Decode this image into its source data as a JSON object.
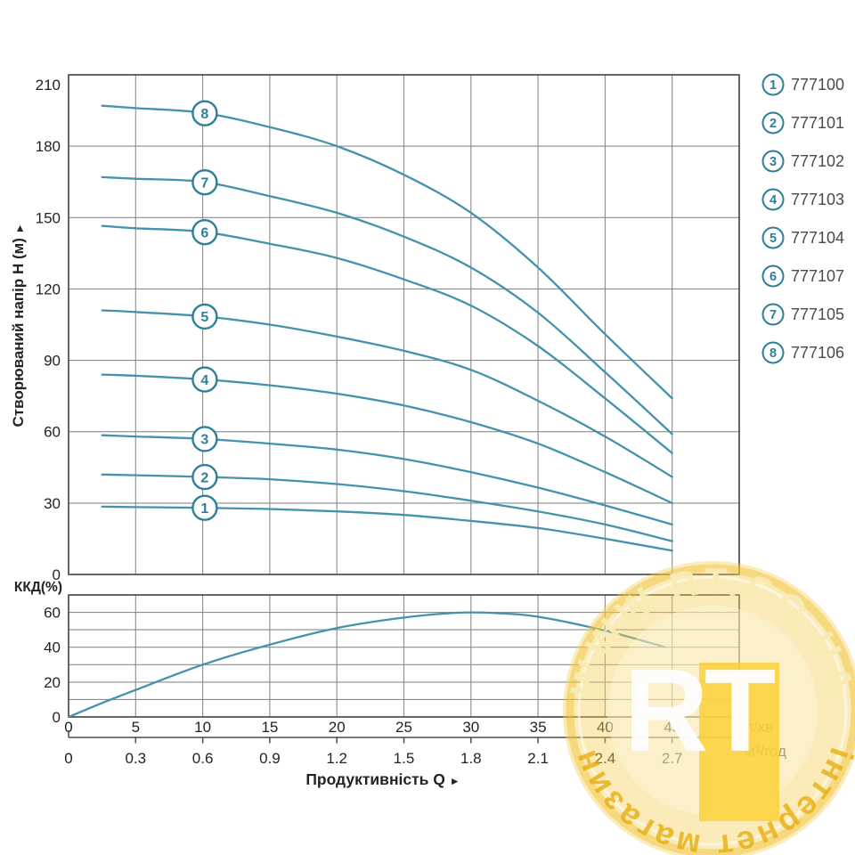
{
  "figure": {
    "description": "Pump performance curves: head H vs flow Q for 8 models, with efficiency subchart",
    "background": "#ffffff"
  },
  "colors": {
    "curve": "#4492ab",
    "curve_circle": "#2e7f99",
    "grid": "#8b8b8b",
    "frame": "#4c4c4c",
    "tick_text": "#262220",
    "legend_text": "#4a4a46",
    "watermark_gold": "#f6cf56",
    "watermark_ring": "#efbd2a",
    "watermark_square": "#fccf33",
    "watermark_arc_top": "#f8ecb4",
    "watermark_arc_bottom": "#e6ad0b"
  },
  "head_axis": {
    "title": "Створюваний напір H (м)",
    "arrow": "►"
  },
  "eff_axis": {
    "title": "ККД(%)"
  },
  "x_axis": {
    "title": "Продуктивність  Q",
    "arrow": "►",
    "unit_primary": "л/хв",
    "unit_secondary": "м³/год",
    "primary_ticks": [
      "0",
      "5",
      "10",
      "15",
      "20",
      "25",
      "30",
      "35",
      "40",
      "45"
    ],
    "secondary_ticks": [
      "0",
      "0.3",
      "0.6",
      "0.9",
      "1.2",
      "1.5",
      "1.8",
      "2.1",
      "2.4",
      "2.7"
    ]
  },
  "legend": {
    "items": [
      {
        "number": "1",
        "code": "777100"
      },
      {
        "number": "2",
        "code": "777101"
      },
      {
        "number": "3",
        "code": "777102"
      },
      {
        "number": "4",
        "code": "777103"
      },
      {
        "number": "5",
        "code": "777104"
      },
      {
        "number": "6",
        "code": "777107"
      },
      {
        "number": "7",
        "code": "777105"
      },
      {
        "number": "8",
        "code": "777106"
      }
    ]
  },
  "watermark": {
    "arc_top": "WWW.RT.CO.UA",
    "arc_bottom": "інтернет магазин",
    "logo": "RT"
  },
  "chart_data": [
    {
      "type": "line",
      "title": "",
      "xlabel": "Продуктивність Q",
      "ylabel": "Створюваний напір H (м)",
      "x_units": [
        "л/хв",
        "м³/год"
      ],
      "xlim": [
        0,
        50
      ],
      "ylim": [
        0,
        210
      ],
      "xticks_lmin": [
        0,
        5,
        10,
        15,
        20,
        25,
        30,
        35,
        40,
        45
      ],
      "xticks_m3h": [
        0,
        0.3,
        0.6,
        0.9,
        1.2,
        1.5,
        1.8,
        2.1,
        2.4,
        2.7
      ],
      "yticks": [
        0,
        30,
        60,
        90,
        120,
        150,
        180,
        210
      ],
      "grid": true,
      "legend_position": "right",
      "curve_label_q": 10.15,
      "series": [
        {
          "name": "1",
          "code": "777100",
          "points": [
            [
              2.5,
              28.5
            ],
            [
              5,
              28.3
            ],
            [
              10,
              28
            ],
            [
              15,
              27.5
            ],
            [
              20,
              26.5
            ],
            [
              25,
              25
            ],
            [
              30,
              22.5
            ],
            [
              35,
              19.5
            ],
            [
              40,
              15
            ],
            [
              45,
              10
            ]
          ]
        },
        {
          "name": "2",
          "code": "777101",
          "points": [
            [
              2.5,
              42
            ],
            [
              5,
              41.7
            ],
            [
              10,
              41
            ],
            [
              15,
              40
            ],
            [
              20,
              38
            ],
            [
              25,
              35
            ],
            [
              30,
              31
            ],
            [
              35,
              26.5
            ],
            [
              40,
              21
            ],
            [
              45,
              14
            ]
          ]
        },
        {
          "name": "3",
          "code": "777102",
          "points": [
            [
              2.5,
              58.5
            ],
            [
              5,
              58
            ],
            [
              10,
              57
            ],
            [
              15,
              55
            ],
            [
              20,
              52.5
            ],
            [
              25,
              48.5
            ],
            [
              30,
              43
            ],
            [
              35,
              36.5
            ],
            [
              40,
              29
            ],
            [
              45,
              21
            ]
          ]
        },
        {
          "name": "4",
          "code": "777103",
          "points": [
            [
              2.5,
              84
            ],
            [
              5,
              83.5
            ],
            [
              10,
              82
            ],
            [
              15,
              79.5
            ],
            [
              20,
              76
            ],
            [
              25,
              71
            ],
            [
              30,
              64
            ],
            [
              35,
              55
            ],
            [
              40,
              43
            ],
            [
              45,
              30
            ]
          ]
        },
        {
          "name": "5",
          "code": "777104",
          "points": [
            [
              2.5,
              111
            ],
            [
              5,
              110.3
            ],
            [
              10,
              108.5
            ],
            [
              15,
              105
            ],
            [
              20,
              100
            ],
            [
              25,
              94
            ],
            [
              30,
              86
            ],
            [
              35,
              73
            ],
            [
              40,
              58
            ],
            [
              45,
              41
            ]
          ]
        },
        {
          "name": "6",
          "code": "777107",
          "points": [
            [
              2.5,
              146.5
            ],
            [
              5,
              145.5
            ],
            [
              10,
              144
            ],
            [
              15,
              139
            ],
            [
              20,
              133
            ],
            [
              25,
              124
            ],
            [
              30,
              113
            ],
            [
              35,
              96
            ],
            [
              40,
              74
            ],
            [
              45,
              51
            ]
          ]
        },
        {
          "name": "7",
          "code": "777105",
          "points": [
            [
              2.5,
              167
            ],
            [
              5,
              166.3
            ],
            [
              10,
              165
            ],
            [
              15,
              159
            ],
            [
              20,
              152
            ],
            [
              25,
              142
            ],
            [
              30,
              129
            ],
            [
              35,
              110
            ],
            [
              40,
              85
            ],
            [
              45,
              59
            ]
          ]
        },
        {
          "name": "8",
          "code": "777106",
          "points": [
            [
              2.5,
              197
            ],
            [
              5,
              196
            ],
            [
              10,
              194
            ],
            [
              15,
              188
            ],
            [
              20,
              180
            ],
            [
              25,
              168
            ],
            [
              30,
              152
            ],
            [
              35,
              129
            ],
            [
              40,
              101
            ],
            [
              45,
              74
            ]
          ]
        }
      ]
    },
    {
      "type": "line",
      "title": "",
      "ylabel": "ККД(%)",
      "xlim": [
        0,
        50
      ],
      "ylim": [
        0,
        70
      ],
      "yticks": [
        0,
        20,
        40,
        60
      ],
      "grid": true,
      "series": [
        {
          "name": "ККД",
          "points": [
            [
              0,
              0
            ],
            [
              2.5,
              8
            ],
            [
              5,
              15.5
            ],
            [
              10,
              30
            ],
            [
              15,
              41.5
            ],
            [
              20,
              51
            ],
            [
              25,
              57
            ],
            [
              29,
              59.8
            ],
            [
              32,
              59.5
            ],
            [
              35,
              57.5
            ],
            [
              40,
              49.5
            ],
            [
              44.5,
              40
            ]
          ]
        }
      ]
    }
  ]
}
